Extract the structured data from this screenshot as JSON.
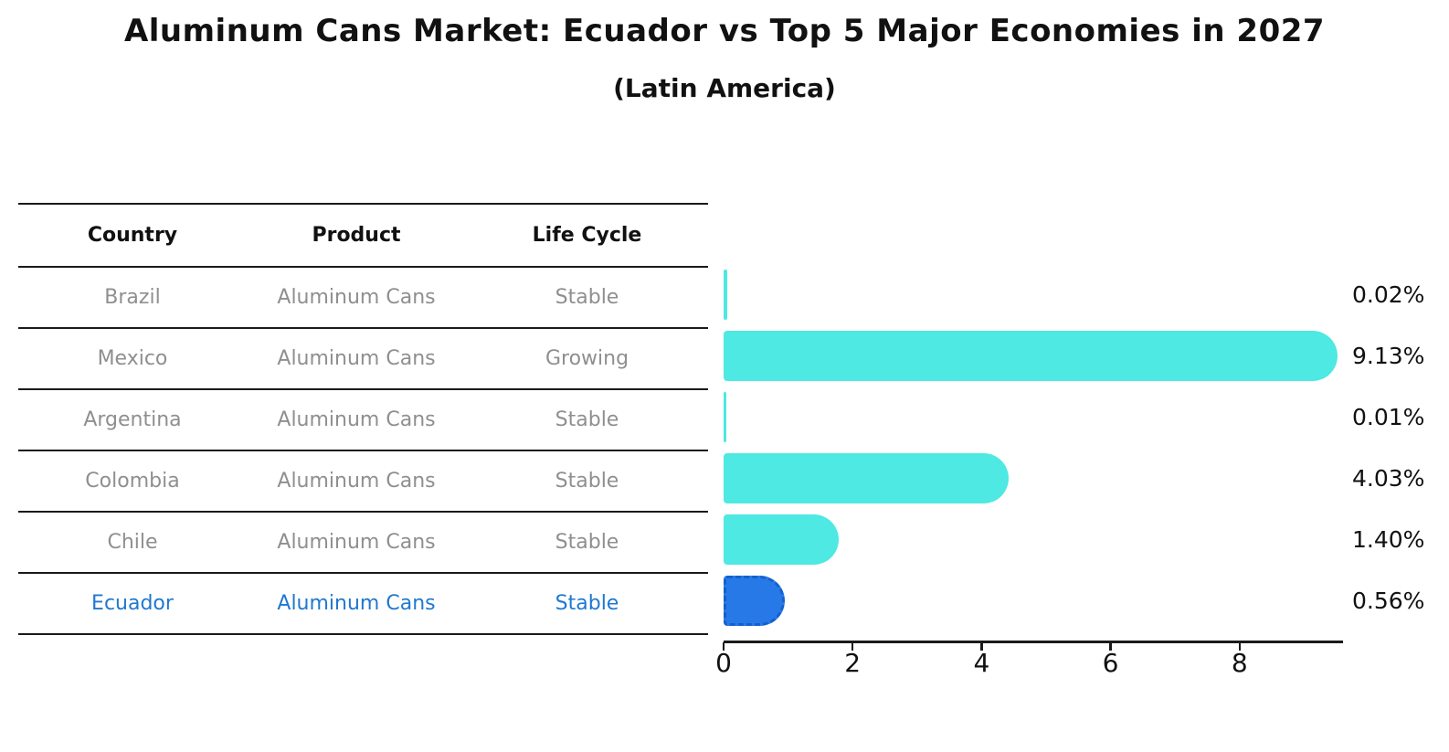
{
  "title": "Aluminum Cans Market: Ecuador vs Top 5 Major Economies in 2027",
  "subtitle": "(Latin America)",
  "table": {
    "headers": {
      "country": "Country",
      "product": "Product",
      "life_cycle": "Life Cycle"
    },
    "rows": [
      {
        "country": "Brazil",
        "product": "Aluminum Cans",
        "life_cycle": "Stable",
        "highlighted": false
      },
      {
        "country": "Mexico",
        "product": "Aluminum Cans",
        "life_cycle": "Growing",
        "highlighted": false
      },
      {
        "country": "Argentina",
        "product": "Aluminum Cans",
        "life_cycle": "Stable",
        "highlighted": false
      },
      {
        "country": "Colombia",
        "product": "Aluminum Cans",
        "life_cycle": "Stable",
        "highlighted": false
      },
      {
        "country": "Chile",
        "product": "Aluminum Cans",
        "life_cycle": "Stable",
        "highlighted": false
      },
      {
        "country": "Ecuador",
        "product": "Aluminum Cans",
        "life_cycle": "Stable",
        "highlighted": true
      }
    ]
  },
  "chart_data": {
    "type": "bar",
    "orientation": "horizontal",
    "categories": [
      "Brazil",
      "Mexico",
      "Argentina",
      "Colombia",
      "Chile",
      "Ecuador"
    ],
    "values": [
      0.02,
      9.13,
      0.01,
      4.03,
      1.4,
      0.56
    ],
    "value_labels": [
      "0.02%",
      "9.13%",
      "0.01%",
      "4.03%",
      "1.40%",
      "0.56%"
    ],
    "x_ticks": [
      "0",
      "2",
      "4",
      "6",
      "8"
    ],
    "x_tick_values": [
      0,
      2,
      4,
      6,
      8
    ],
    "xlim": [
      0,
      9.6
    ],
    "grid": false,
    "legend": "none",
    "highlight_index": 5,
    "bar_color": "#4de9e2",
    "highlight_color": "#2879e8",
    "highlight_border_color": "#1460cf",
    "axis_color": "#1a1a1a",
    "label_color": "#111111",
    "muted_text_color": "#8f8f8f",
    "highlight_text_color": "#1f78d1"
  }
}
